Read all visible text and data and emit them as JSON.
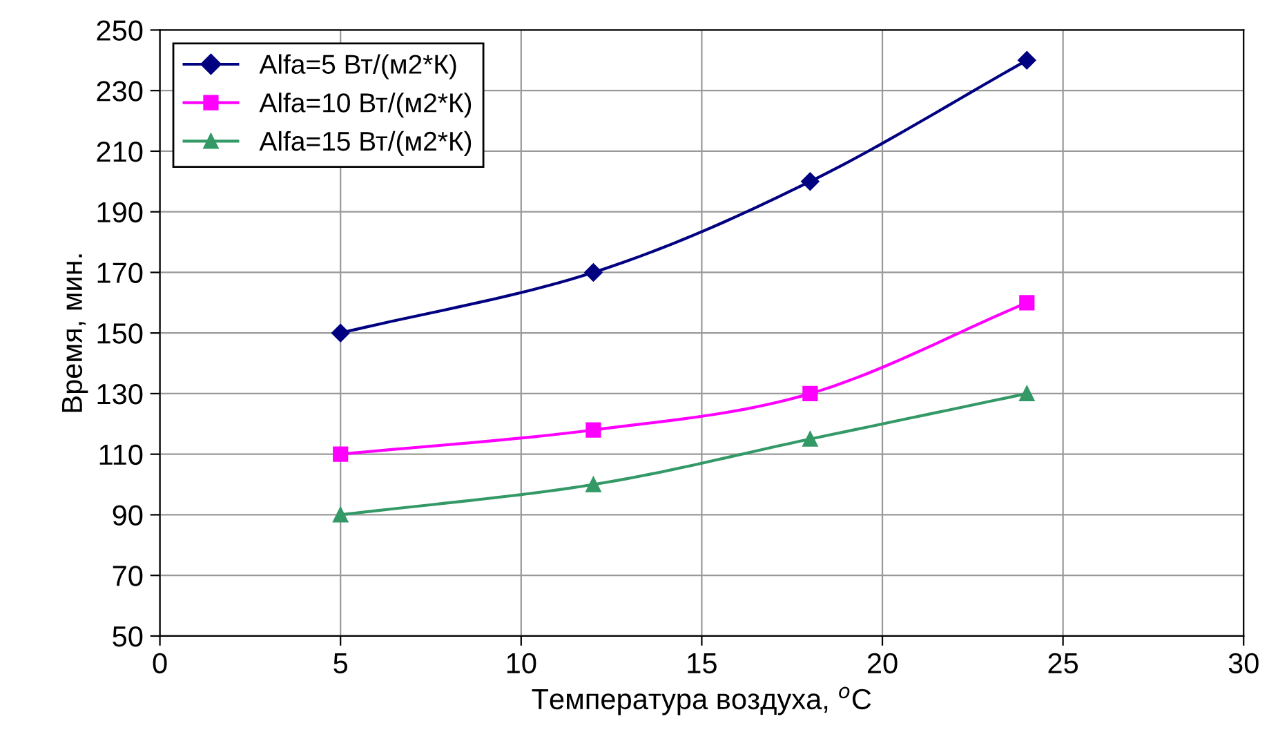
{
  "chart_data": {
    "type": "line",
    "xlabel": "Температура воздуха, $^{o}$C",
    "ylabel": "Время, мин.",
    "x": [
      5,
      12,
      18,
      24
    ],
    "series": [
      {
        "name": "Alfa=5 Вт/(м2*К)",
        "color": "#000080",
        "marker": "diamond",
        "values": [
          150,
          170,
          200,
          240
        ]
      },
      {
        "name": "Alfa=10 Вт/(м2*К)",
        "color": "#ff00ff",
        "marker": "square",
        "values": [
          110,
          118,
          130,
          160
        ]
      },
      {
        "name": "Alfa=15 Вт/(м2*К)",
        "color": "#339966",
        "marker": "triangle",
        "values": [
          90,
          100,
          115,
          130
        ]
      }
    ],
    "xlim": [
      0,
      30
    ],
    "xticks": [
      0,
      5,
      10,
      15,
      20,
      25,
      30
    ],
    "ylim": [
      50,
      250
    ],
    "yticks": [
      50,
      70,
      90,
      110,
      130,
      150,
      170,
      190,
      210,
      230,
      250
    ],
    "grid": true,
    "legend": "top left",
    "line_style": "solid"
  }
}
